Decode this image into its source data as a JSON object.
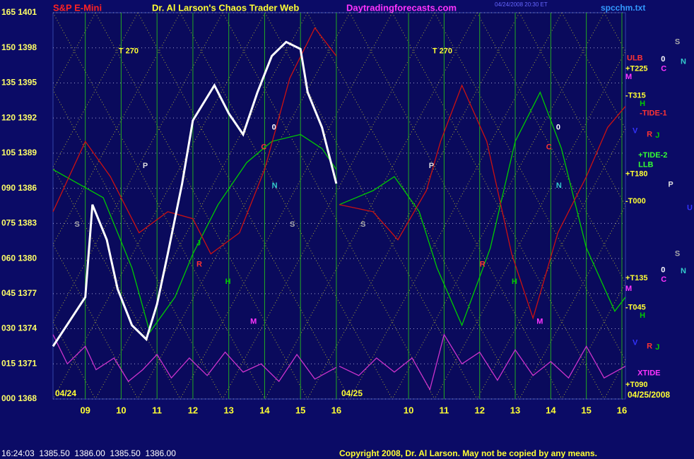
{
  "header": {
    "symbol": "S&P E-Mini",
    "title": "Dr. Al Larson's Chaos Trader Web",
    "site": "Daytradingforecasts.com",
    "timestamp": "04/24/2008 20:30 ET",
    "file": "spcchm.txt"
  },
  "footer": {
    "quote": "16:24:03  1385.50  1386.00  1385.50  1386.00",
    "copyright": "Copyright 2008, Dr. Al Larson. May not be copied by any means."
  },
  "chart_data": [
    {
      "type": "line",
      "date": "04/24",
      "xlim": [
        8.1,
        16.08
      ],
      "ylim": [
        1368,
        1401
      ],
      "xticks": [
        {
          "value": 9,
          "label": "09"
        },
        10,
        11,
        12,
        13,
        14,
        15,
        16
      ],
      "yticks": [
        {
          "value": 1368,
          "label": "000 1368"
        },
        {
          "value": 1371,
          "label": "015 1371"
        },
        {
          "value": 1374,
          "label": "030 1374"
        },
        {
          "value": 1377,
          "label": "045 1377"
        },
        {
          "value": 1380,
          "label": "060 1380"
        },
        {
          "value": 1383,
          "label": "075 1383"
        },
        {
          "value": 1386,
          "label": "090 1386"
        },
        {
          "value": 1389,
          "label": "105 1389"
        },
        {
          "value": 1392,
          "label": "120 1392"
        },
        {
          "value": 1395,
          "label": "135 1395"
        },
        {
          "value": 1398,
          "label": "150 1398"
        },
        {
          "value": 1401,
          "label": "165 1401"
        }
      ],
      "grid": true,
      "series": [
        {
          "color": "#00cc00",
          "x": [
            8.1,
            9.5,
            10.3,
            10.8,
            11.5,
            12.0,
            12.7,
            13.5,
            14.2,
            15.0,
            15.6,
            16.0
          ],
          "values": [
            1387.6,
            1385.2,
            1379.2,
            1373.7,
            1376.7,
            1380.4,
            1384.6,
            1388.2,
            1390.0,
            1390.6,
            1389.4,
            1387.6
          ]
        },
        {
          "color": "#cc1111",
          "x": [
            8.1,
            9.0,
            9.7,
            10.5,
            11.3,
            12.0,
            12.5,
            13.3,
            14.0,
            14.7,
            15.4,
            16.0
          ],
          "values": [
            1384.0,
            1390.0,
            1387.0,
            1382.2,
            1384.0,
            1383.4,
            1380.4,
            1382.2,
            1387.6,
            1395.4,
            1399.7,
            1397.3
          ]
        },
        {
          "color": "#cc33cc",
          "x": [
            8.1,
            8.5,
            9.0,
            9.3,
            9.8,
            10.2,
            10.6,
            11.0,
            11.4,
            11.9,
            12.4,
            12.9,
            13.4,
            13.9,
            14.4,
            14.9,
            15.4,
            16.0
          ],
          "values": [
            1373.5,
            1371.0,
            1372.5,
            1370.5,
            1371.5,
            1369.5,
            1370.5,
            1371.8,
            1369.8,
            1371.5,
            1370.0,
            1372.0,
            1370.3,
            1371.0,
            1369.5,
            1371.8,
            1369.7,
            1370.7
          ]
        },
        {
          "color": "#ffffff",
          "x": [
            8.1,
            9.0,
            9.2,
            9.6,
            9.9,
            10.3,
            10.7,
            11.0,
            11.3,
            11.7,
            12.0,
            12.6,
            13.0,
            13.4,
            13.8,
            14.2,
            14.6,
            15.0,
            15.2,
            15.6,
            16.0
          ],
          "values": [
            1372.5,
            1376.7,
            1384.6,
            1381.6,
            1377.4,
            1374.3,
            1373.1,
            1376.1,
            1380.4,
            1386.4,
            1391.8,
            1394.8,
            1392.4,
            1390.6,
            1394.2,
            1397.3,
            1398.5,
            1397.9,
            1394.2,
            1391.2,
            1386.4
          ]
        }
      ],
      "annotations": [
        {
          "text": "T 270",
          "x": 9.93,
          "y": 1397.7,
          "color": "#ffff33"
        },
        {
          "text": "P",
          "x": 10.6,
          "y": 1387.9,
          "color": "#dddddd"
        },
        {
          "text": "S",
          "x": 8.7,
          "y": 1382.9,
          "color": "#aaaaaa"
        },
        {
          "text": "S",
          "x": 14.7,
          "y": 1382.9,
          "color": "#aaaaaa"
        },
        {
          "text": "0",
          "x": 14.2,
          "y": 1391.2,
          "color": "#ffffff"
        },
        {
          "text": "C",
          "x": 13.9,
          "y": 1389.5,
          "color": "#ff3333"
        },
        {
          "text": "N",
          "x": 14.2,
          "y": 1386.2,
          "color": "#33cccc"
        },
        {
          "text": "J",
          "x": 12.1,
          "y": 1381.3,
          "color": "#00cc00"
        },
        {
          "text": "R",
          "x": 12.1,
          "y": 1379.5,
          "color": "#ff3333"
        },
        {
          "text": "H",
          "x": 12.9,
          "y": 1378.0,
          "color": "#00cc00"
        },
        {
          "text": "M",
          "x": 13.6,
          "y": 1374.6,
          "color": "#ff33ff"
        }
      ]
    },
    {
      "type": "line",
      "date": "04/25",
      "end_date": "04/25/2008",
      "xlim": [
        8.05,
        16.1
      ],
      "ylim": [
        1368,
        1401
      ],
      "xticks": [
        10,
        11,
        12,
        13,
        14,
        15,
        16
      ],
      "grid": true,
      "series": [
        {
          "color": "#00cc00",
          "x": [
            8.05,
            9.0,
            9.6,
            10.3,
            10.8,
            11.5,
            12.3,
            13.0,
            13.7,
            14.3,
            15.0,
            15.8,
            16.1
          ],
          "values": [
            1384.6,
            1385.8,
            1387.0,
            1384.0,
            1379.2,
            1374.3,
            1380.9,
            1390.0,
            1394.2,
            1389.4,
            1380.9,
            1375.5,
            1376.7
          ]
        },
        {
          "color": "#cc1111",
          "x": [
            8.05,
            9.0,
            9.7,
            10.5,
            10.9,
            11.5,
            12.2,
            12.9,
            13.5,
            14.2,
            15.0,
            15.6,
            16.1
          ],
          "values": [
            1384.6,
            1384.0,
            1381.6,
            1385.8,
            1390.0,
            1394.8,
            1390.0,
            1380.4,
            1374.9,
            1382.2,
            1387.0,
            1391.2,
            1393.0
          ]
        },
        {
          "color": "#cc33cc",
          "x": [
            8.05,
            8.6,
            9.1,
            9.6,
            10.1,
            10.6,
            11.0,
            11.5,
            12.0,
            12.5,
            13.0,
            13.5,
            14.0,
            14.5,
            15.0,
            15.5,
            16.1
          ],
          "values": [
            1370.8,
            1370.0,
            1371.5,
            1370.3,
            1371.5,
            1368.8,
            1373.5,
            1371.0,
            1372.0,
            1369.6,
            1372.2,
            1370.0,
            1371.2,
            1369.8,
            1372.5,
            1369.8,
            1370.8
          ]
        }
      ],
      "annotations": [
        {
          "text": "T 270",
          "x": 10.67,
          "y": 1397.7,
          "color": "#ffff33"
        },
        {
          "text": "P",
          "x": 10.57,
          "y": 1387.9,
          "color": "#dddddd"
        },
        {
          "text": "S",
          "x": 8.65,
          "y": 1382.9,
          "color": "#aaaaaa"
        },
        {
          "text": "0",
          "x": 14.15,
          "y": 1391.2,
          "color": "#ffffff"
        },
        {
          "text": "C",
          "x": 13.87,
          "y": 1389.5,
          "color": "#ff3333"
        },
        {
          "text": "N",
          "x": 14.15,
          "y": 1386.2,
          "color": "#33cccc"
        },
        {
          "text": "R",
          "x": 12.0,
          "y": 1379.5,
          "color": "#ff3333"
        },
        {
          "text": "H",
          "x": 12.9,
          "y": 1378.0,
          "color": "#00cc00"
        },
        {
          "text": "M",
          "x": 13.6,
          "y": 1374.6,
          "color": "#ff33ff"
        },
        {
          "text": "ULB",
          "x": 16.14,
          "y": 1397.1,
          "color": "#ff3333"
        },
        {
          "text": "+T225",
          "x": 16.1,
          "y": 1396.2,
          "color": "#ffff33"
        },
        {
          "text": "M",
          "x": 16.1,
          "y": 1395.5,
          "color": "#ff33ff"
        },
        {
          "text": "-T315",
          "x": 16.1,
          "y": 1393.9,
          "color": "#ffff33"
        },
        {
          "text": "H",
          "x": 16.5,
          "y": 1393.2,
          "color": "#00cc00"
        },
        {
          "text": "-TIDE-1",
          "x": 16.5,
          "y": 1392.4,
          "color": "#ff3333"
        },
        {
          "text": "V",
          "x": 16.3,
          "y": 1390.9,
          "color": "#3333ff"
        },
        {
          "text": "R",
          "x": 16.7,
          "y": 1390.6,
          "color": "#ff3333"
        },
        {
          "text": "J",
          "x": 16.94,
          "y": 1390.5,
          "color": "#00cc00"
        },
        {
          "text": "+TIDE-2",
          "x": 16.46,
          "y": 1388.8,
          "color": "#33ff33"
        },
        {
          "text": "LLB",
          "x": 16.46,
          "y": 1388.0,
          "color": "#33ff33"
        },
        {
          "text": "+T180",
          "x": 16.1,
          "y": 1387.2,
          "color": "#ffff33"
        },
        {
          "text": "P",
          "x": 17.3,
          "y": 1386.3,
          "color": "#dddddd"
        },
        {
          "text": "-T000",
          "x": 16.1,
          "y": 1384.9,
          "color": "#ffff33"
        },
        {
          "text": "U",
          "x": 17.83,
          "y": 1384.3,
          "color": "#3333ff"
        },
        {
          "text": "S",
          "x": 17.49,
          "y": 1398.5,
          "color": "#aaaaaa"
        },
        {
          "text": "0",
          "x": 17.1,
          "y": 1397.0,
          "color": "#ffffff"
        },
        {
          "text": "N",
          "x": 17.65,
          "y": 1396.8,
          "color": "#33cccc"
        },
        {
          "text": "C",
          "x": 17.1,
          "y": 1396.2,
          "color": "#ff33ff"
        },
        {
          "text": "S",
          "x": 17.49,
          "y": 1380.4,
          "color": "#aaaaaa"
        },
        {
          "text": "0",
          "x": 17.1,
          "y": 1379.0,
          "color": "#ffffff"
        },
        {
          "text": "N",
          "x": 17.65,
          "y": 1378.9,
          "color": "#33cccc"
        },
        {
          "text": "C",
          "x": 17.1,
          "y": 1378.2,
          "color": "#ff33ff"
        },
        {
          "text": "+T135",
          "x": 16.1,
          "y": 1378.3,
          "color": "#ffff33"
        },
        {
          "text": "M",
          "x": 16.1,
          "y": 1377.4,
          "color": "#ff33ff"
        },
        {
          "text": "-T045",
          "x": 16.1,
          "y": 1375.8,
          "color": "#ffff33"
        },
        {
          "text": "H",
          "x": 16.5,
          "y": 1375.1,
          "color": "#00cc00"
        },
        {
          "text": "V",
          "x": 16.3,
          "y": 1372.8,
          "color": "#3333ff"
        },
        {
          "text": "R",
          "x": 16.7,
          "y": 1372.5,
          "color": "#ff3333"
        },
        {
          "text": "J",
          "x": 16.94,
          "y": 1372.4,
          "color": "#00cc00"
        },
        {
          "text": "XTIDE",
          "x": 16.44,
          "y": 1370.2,
          "color": "#ff33ff"
        },
        {
          "text": "+T090",
          "x": 16.1,
          "y": 1369.2,
          "color": "#ffff33"
        }
      ]
    }
  ]
}
